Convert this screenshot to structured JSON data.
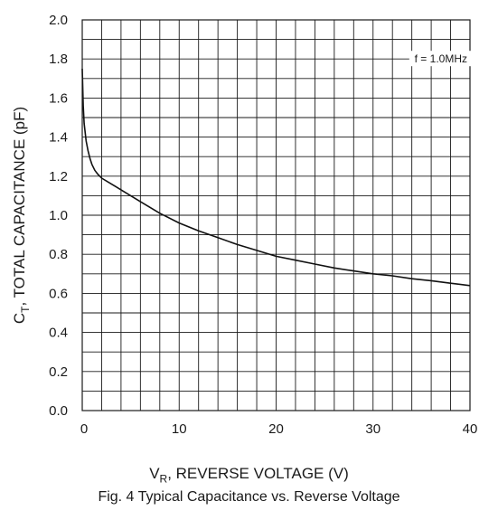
{
  "chart_data": {
    "type": "line",
    "xlabel": {
      "main": "V",
      "sub": "R",
      "rest": ", REVERSE VOLTAGE (V)"
    },
    "ylabel": {
      "main": "C",
      "sub": "T",
      "rest": ", TOTAL CAPACITANCE (pF)"
    },
    "xlim": [
      0,
      40
    ],
    "ylim": [
      0,
      2.0
    ],
    "x_ticks": [
      "0",
      "10",
      "20",
      "30",
      "40"
    ],
    "y_ticks": [
      "0.0",
      "0.2",
      "0.4",
      "0.6",
      "0.8",
      "1.0",
      "1.2",
      "1.4",
      "1.6",
      "1.8",
      "2.0"
    ],
    "grid": true,
    "annotation": "f = 1.0MHz",
    "series": [
      {
        "x": [
          0,
          0.1,
          0.2,
          0.4,
          0.6,
          0.8,
          1.0,
          1.3,
          1.6,
          2,
          3,
          4,
          5,
          6,
          8,
          10,
          12,
          14,
          16,
          18,
          20,
          22,
          24,
          26,
          28,
          30,
          32,
          34,
          36,
          38,
          40
        ],
        "y": [
          1.75,
          1.56,
          1.47,
          1.38,
          1.33,
          1.29,
          1.26,
          1.23,
          1.21,
          1.19,
          1.16,
          1.13,
          1.1,
          1.07,
          1.01,
          0.96,
          0.92,
          0.885,
          0.85,
          0.82,
          0.79,
          0.77,
          0.75,
          0.73,
          0.715,
          0.7,
          0.69,
          0.675,
          0.665,
          0.652,
          0.64
        ]
      }
    ]
  },
  "caption": "Fig. 4  Typical Capacitance vs. Reverse Voltage"
}
